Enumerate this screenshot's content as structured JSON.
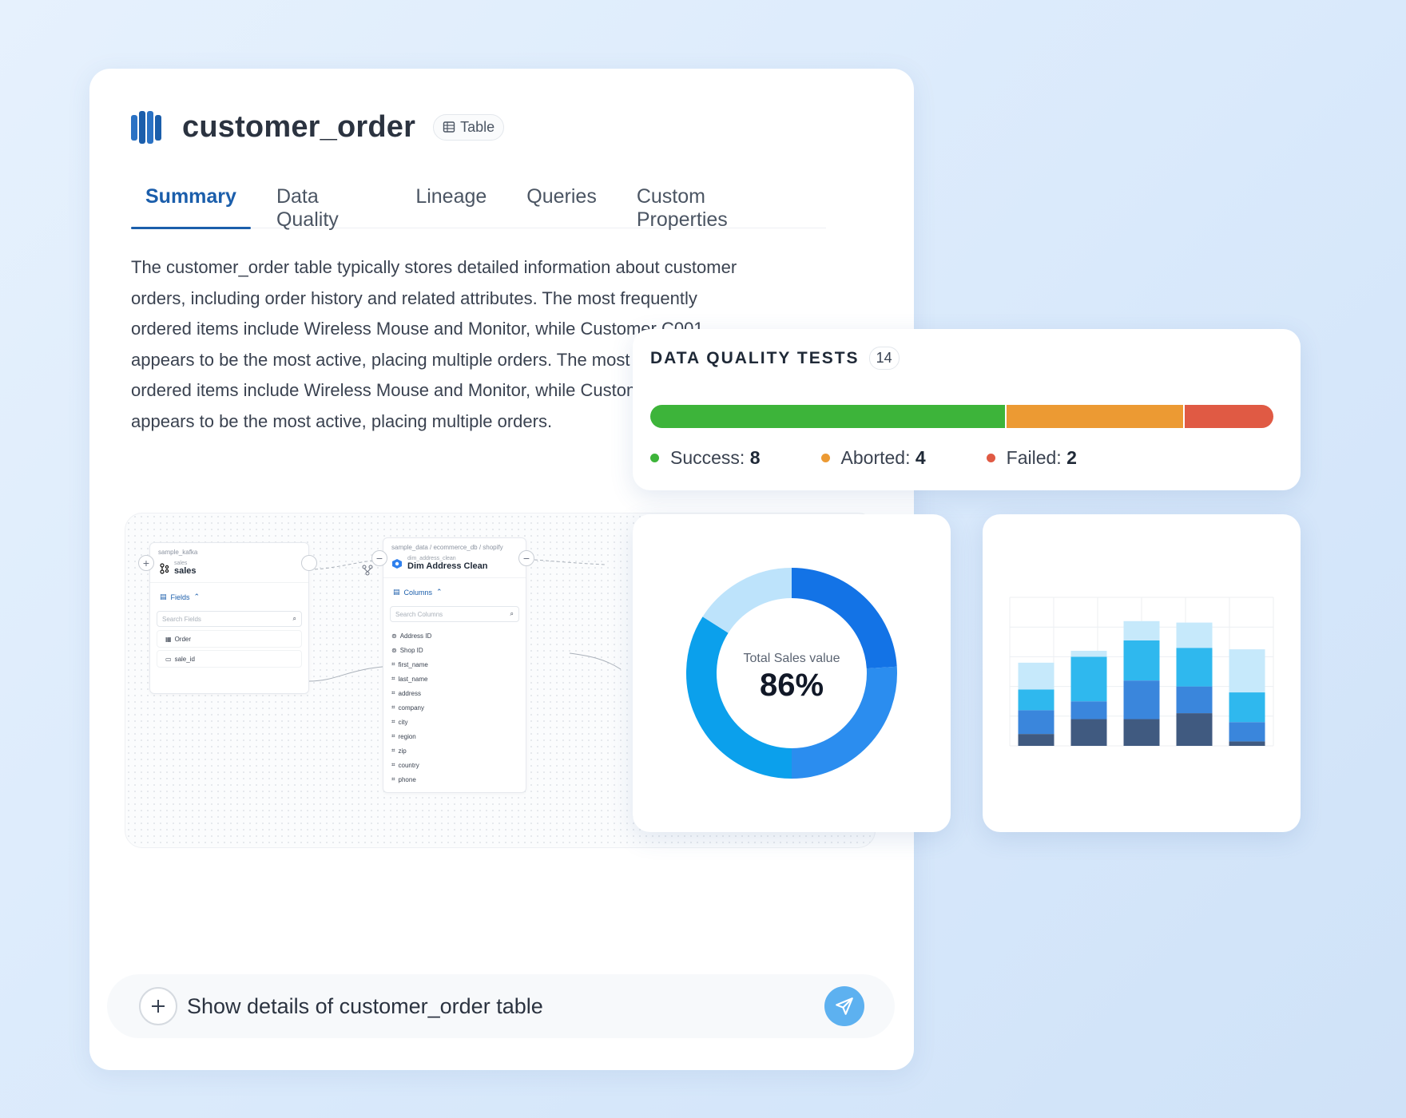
{
  "header": {
    "title": "customer_order",
    "type_badge": "Table",
    "logo_icon": "database-columns-icon",
    "logo_color": "#1b5eab"
  },
  "tabs": [
    {
      "label": "Summary",
      "active": true
    },
    {
      "label": "Data Quality",
      "active": false
    },
    {
      "label": "Lineage",
      "active": false
    },
    {
      "label": "Queries",
      "active": false
    },
    {
      "label": "Custom Properties",
      "active": false
    }
  ],
  "description": "The customer_order table typically stores detailed information about customer orders, including order history and related attributes. The most frequently ordered items include Wireless Mouse and Monitor, while Customer C001 appears to be the most active, placing multiple orders. The most frequently ordered items include Wireless Mouse and Monitor, while Customer C001 appears to be the most active, placing multiple orders.",
  "lineage": {
    "source_node": {
      "breadcrumb": "sample_kafka",
      "subtitle": "sales",
      "name": "sales",
      "section": "Fields",
      "search_placeholder": "Search Fields",
      "fields": [
        "Order",
        "sale_id"
      ]
    },
    "target_node": {
      "breadcrumb": "sample_data / ecommerce_db / shopify",
      "subtitle": "dim_address_clean",
      "name": "Dim Address Clean",
      "section": "Columns",
      "search_placeholder": "Search Columns",
      "columns": [
        "Address ID",
        "Shop ID",
        "first_name",
        "last_name",
        "address",
        "company",
        "city",
        "region",
        "zip",
        "country",
        "phone"
      ]
    }
  },
  "data_quality": {
    "title": "DATA QUALITY TESTS",
    "total": "14",
    "segments": [
      {
        "label": "Success:",
        "value": 8,
        "color": "#3db43a"
      },
      {
        "label": "Aborted:",
        "value": 4,
        "color": "#ec9a33"
      },
      {
        "label": "Failed:",
        "value": 2,
        "color": "#e05a44"
      }
    ]
  },
  "donut": {
    "label": "Total Sales value",
    "value_text": "86%",
    "chart_data": {
      "type": "pie",
      "values": [
        24,
        26,
        34,
        16
      ],
      "colors": [
        "#1373e6",
        "#2b8def",
        "#0ba0ec",
        "#bde3fb"
      ]
    }
  },
  "stacked_bars": {
    "chart_data": {
      "type": "bar",
      "stacked": true,
      "categories": [
        "",
        "",
        "",
        "",
        ""
      ],
      "series": [
        {
          "values": [
            8,
            18,
            18,
            22,
            3
          ],
          "color": "#405a80"
        },
        {
          "values": [
            16,
            12,
            26,
            18,
            13
          ],
          "color": "#3a86dc"
        },
        {
          "values": [
            14,
            30,
            27,
            26,
            20
          ],
          "color": "#2fb8ee"
        },
        {
          "values": [
            18,
            4,
            13,
            17,
            29
          ],
          "color": "#c6e9fb"
        }
      ],
      "ylim": [
        0,
        100
      ]
    }
  },
  "prompt": {
    "text": "Show details of customer_order table",
    "send_icon": "send-icon",
    "plus_icon": "plus-icon"
  }
}
